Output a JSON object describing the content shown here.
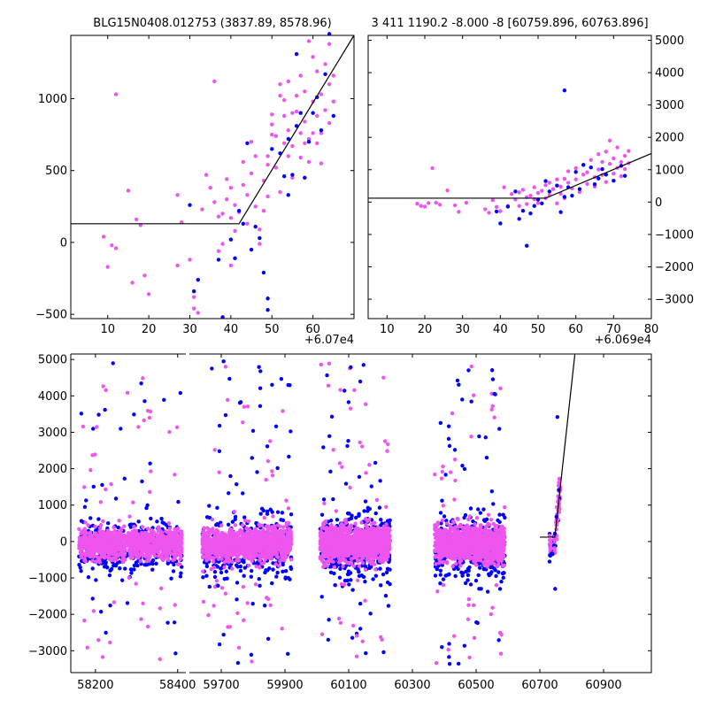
{
  "colors": {
    "blue": "#0000ff",
    "pink": "#ee55ee"
  },
  "chart_data": [
    {
      "type": "scatter",
      "title": "BLG15N0408.012753 (3837.89, 8578.96)",
      "x_offset_label": "+6.07e4",
      "xlim": [
        1,
        70
      ],
      "ylim": [
        -530,
        1440
      ],
      "xticks": [
        10,
        20,
        30,
        40,
        50,
        60
      ],
      "yticks": [
        -500,
        0,
        500,
        1000
      ],
      "ytick_side": "left",
      "fit_line": [
        [
          1,
          130
        ],
        [
          42,
          130
        ],
        [
          70,
          1440
        ]
      ],
      "series": [
        {
          "color": "pink",
          "points": [
            [
              9,
              40
            ],
            [
              10,
              -170
            ],
            [
              11,
              -20
            ],
            [
              12,
              1030
            ],
            [
              12,
              -40
            ],
            [
              15,
              360
            ],
            [
              16,
              -280
            ],
            [
              17,
              160
            ],
            [
              18,
              120
            ],
            [
              19,
              -230
            ],
            [
              20,
              -360
            ],
            [
              27,
              -160
            ],
            [
              27,
              330
            ],
            [
              28,
              140
            ],
            [
              30,
              -120
            ],
            [
              31,
              -380
            ],
            [
              31,
              -460
            ],
            [
              32,
              -490
            ],
            [
              33,
              230
            ],
            [
              34,
              470
            ],
            [
              35,
              380
            ],
            [
              36,
              1120
            ],
            [
              36,
              280
            ],
            [
              37,
              180
            ],
            [
              37,
              -60
            ],
            [
              38,
              -10
            ],
            [
              38,
              200
            ],
            [
              39,
              440
            ],
            [
              39,
              300
            ],
            [
              40,
              380
            ],
            [
              40,
              -160
            ],
            [
              40,
              170
            ],
            [
              41,
              80
            ],
            [
              41,
              260
            ],
            [
              42,
              210
            ],
            [
              43,
              400
            ],
            [
              43,
              560
            ],
            [
              44,
              330
            ],
            [
              44,
              130
            ],
            [
              45,
              700
            ],
            [
              45,
              480
            ],
            [
              46,
              600
            ],
            [
              46,
              250
            ],
            [
              47,
              90
            ],
            [
              47,
              -10
            ],
            [
              48,
              430
            ],
            [
              48,
              220
            ],
            [
              49,
              540
            ],
            [
              49,
              320
            ],
            [
              49,
              600
            ],
            [
              50,
              750
            ],
            [
              50,
              820
            ],
            [
              50,
              890
            ],
            [
              51,
              740
            ],
            [
              51,
              520
            ],
            [
              52,
              1020
            ],
            [
              52,
              1100
            ],
            [
              52,
              350
            ],
            [
              53,
              880
            ],
            [
              53,
              690
            ],
            [
              53,
              990
            ],
            [
              54,
              600
            ],
            [
              54,
              780
            ],
            [
              54,
              1120
            ],
            [
              55,
              900
            ],
            [
              55,
              670
            ],
            [
              55,
              450
            ],
            [
              56,
              910
            ],
            [
              56,
              1020
            ],
            [
              57,
              760
            ],
            [
              57,
              590
            ],
            [
              57,
              1160
            ],
            [
              58,
              840
            ],
            [
              58,
              1050
            ],
            [
              58,
              690
            ],
            [
              59,
              720
            ],
            [
              59,
              1400
            ],
            [
              59,
              560
            ],
            [
              60,
              980
            ],
            [
              60,
              760
            ],
            [
              60,
              1290
            ],
            [
              61,
              880
            ],
            [
              61,
              690
            ],
            [
              61,
              1190
            ],
            [
              62,
              760
            ],
            [
              62,
              1030
            ],
            [
              62,
              550
            ],
            [
              63,
              920
            ],
            [
              63,
              1240
            ],
            [
              64,
              830
            ],
            [
              64,
              1380
            ],
            [
              64,
              1100
            ],
            [
              65,
              1160
            ],
            [
              65,
              980
            ]
          ]
        },
        {
          "color": "blue",
          "points": [
            [
              30,
              260
            ],
            [
              31,
              -340
            ],
            [
              32,
              -260
            ],
            [
              37,
              -120
            ],
            [
              38,
              -520
            ],
            [
              40,
              20
            ],
            [
              41,
              -110
            ],
            [
              42,
              220
            ],
            [
              43,
              130
            ],
            [
              44,
              690
            ],
            [
              45,
              -50
            ],
            [
              46,
              110
            ],
            [
              47,
              30
            ],
            [
              48,
              -210
            ],
            [
              49,
              -390
            ],
            [
              49,
              -470
            ],
            [
              50,
              650
            ],
            [
              52,
              620
            ],
            [
              53,
              460
            ],
            [
              54,
              720
            ],
            [
              54,
              330
            ],
            [
              55,
              470
            ],
            [
              56,
              810
            ],
            [
              56,
              1310
            ],
            [
              57,
              900
            ],
            [
              58,
              450
            ],
            [
              59,
              700
            ],
            [
              60,
              900
            ],
            [
              61,
              1010
            ],
            [
              62,
              780
            ],
            [
              63,
              1170
            ],
            [
              64,
              1450
            ],
            [
              65,
              880
            ]
          ]
        }
      ]
    },
    {
      "type": "scatter",
      "title": "3 411 1190.2 -8.000 -8 [60759.896, 60763.896]",
      "x_offset_label": "+6.069e4",
      "xlim": [
        5,
        80
      ],
      "ylim": [
        -3600,
        5150
      ],
      "xticks": [
        10,
        20,
        30,
        40,
        50,
        60,
        70,
        80
      ],
      "yticks": [
        -3000,
        -2000,
        -1000,
        0,
        1000,
        2000,
        3000,
        4000,
        5000
      ],
      "ytick_side": "right",
      "fit_line": [
        [
          5,
          120
        ],
        [
          52,
          120
        ],
        [
          80,
          1500
        ]
      ],
      "series": [
        {
          "color": "pink",
          "points": [
            [
              18,
              -50
            ],
            [
              19,
              -120
            ],
            [
              20,
              -140
            ],
            [
              21,
              -30
            ],
            [
              22,
              1050
            ],
            [
              23,
              -20
            ],
            [
              24,
              -80
            ],
            [
              26,
              360
            ],
            [
              28,
              -100
            ],
            [
              29,
              -300
            ],
            [
              31,
              -20
            ],
            [
              36,
              -220
            ],
            [
              37,
              -330
            ],
            [
              38,
              60
            ],
            [
              39,
              -150
            ],
            [
              40,
              -280
            ],
            [
              41,
              460
            ],
            [
              42,
              -120
            ],
            [
              43,
              250
            ],
            [
              44,
              80
            ],
            [
              45,
              300
            ],
            [
              45,
              -120
            ],
            [
              46,
              380
            ],
            [
              47,
              150
            ],
            [
              47,
              -60
            ],
            [
              48,
              200
            ],
            [
              49,
              460
            ],
            [
              49,
              90
            ],
            [
              50,
              280
            ],
            [
              50,
              -30
            ],
            [
              51,
              350
            ],
            [
              52,
              120
            ],
            [
              52,
              520
            ],
            [
              53,
              220
            ],
            [
              53,
              600
            ],
            [
              54,
              400
            ],
            [
              55,
              700
            ],
            [
              55,
              -40
            ],
            [
              56,
              260
            ],
            [
              56,
              480
            ],
            [
              57,
              120
            ],
            [
              57,
              720
            ],
            [
              58,
              600
            ],
            [
              58,
              950
            ],
            [
              59,
              420
            ],
            [
              60,
              700
            ],
            [
              60,
              1050
            ],
            [
              61,
              310
            ],
            [
              62,
              850
            ],
            [
              62,
              1150
            ],
            [
              63,
              560
            ],
            [
              63,
              920
            ],
            [
              64,
              1300
            ],
            [
              65,
              770
            ],
            [
              65,
              480
            ],
            [
              66,
              1010
            ],
            [
              66,
              1480
            ],
            [
              67,
              840
            ],
            [
              67,
              1240
            ],
            [
              68,
              620
            ],
            [
              68,
              1560
            ],
            [
              69,
              1180
            ],
            [
              69,
              1900
            ],
            [
              70,
              880
            ],
            [
              70,
              1350
            ],
            [
              71,
              1060
            ],
            [
              71,
              1690
            ],
            [
              72,
              800
            ],
            [
              72,
              1240
            ],
            [
              73,
              1430
            ],
            [
              73,
              1020
            ],
            [
              74,
              1580
            ],
            [
              74,
              1200
            ]
          ]
        },
        {
          "color": "blue",
          "points": [
            [
              39,
              -290
            ],
            [
              40,
              -660
            ],
            [
              42,
              -140
            ],
            [
              44,
              330
            ],
            [
              45,
              -520
            ],
            [
              46,
              -270
            ],
            [
              47,
              -1350
            ],
            [
              48,
              -350
            ],
            [
              49,
              -120
            ],
            [
              50,
              80
            ],
            [
              51,
              -40
            ],
            [
              52,
              650
            ],
            [
              53,
              330
            ],
            [
              55,
              510
            ],
            [
              56,
              -310
            ],
            [
              57,
              3450
            ],
            [
              57,
              160
            ],
            [
              58,
              460
            ],
            [
              59,
              200
            ],
            [
              60,
              930
            ],
            [
              61,
              400
            ],
            [
              62,
              1150
            ],
            [
              64,
              1070
            ],
            [
              65,
              550
            ],
            [
              66,
              730
            ],
            [
              67,
              1020
            ],
            [
              68,
              850
            ],
            [
              70,
              660
            ],
            [
              72,
              1120
            ],
            [
              73,
              810
            ]
          ]
        }
      ]
    },
    {
      "type": "scatter",
      "title": "",
      "ylim": [
        -3600,
        5150
      ],
      "yticks": [
        -3000,
        -2000,
        -1000,
        0,
        1000,
        2000,
        3000,
        4000,
        5000
      ],
      "ytick_side": "left",
      "segments": [
        {
          "xlim": [
            58140,
            58420
          ],
          "xticks": [
            58200,
            58400
          ]
        },
        {
          "xlim": [
            59600,
            61050
          ],
          "xticks": [
            59700,
            59900,
            60100,
            60300,
            60500,
            60700,
            60900
          ]
        }
      ],
      "seasons": [
        {
          "range": [
            58160,
            58410
          ],
          "scatter_sd": 200,
          "n": 1100,
          "flare_n": 70,
          "seed": 11
        },
        {
          "range": [
            59640,
            59920
          ],
          "scatter_sd": 220,
          "n": 1100,
          "flare_n": 80,
          "seed": 23
        },
        {
          "range": [
            60010,
            60230
          ],
          "scatter_sd": 240,
          "n": 1100,
          "flare_n": 75,
          "seed": 37
        },
        {
          "range": [
            60370,
            60590
          ],
          "scatter_sd": 240,
          "n": 1100,
          "flare_n": 75,
          "seed": 53
        }
      ],
      "event": {
        "x_start": 60730,
        "x_end": 60764,
        "peak": 1500
      },
      "fit_line": [
        [
          60700,
          120
        ],
        [
          60747,
          120
        ],
        [
          60810,
          5150
        ]
      ]
    }
  ]
}
